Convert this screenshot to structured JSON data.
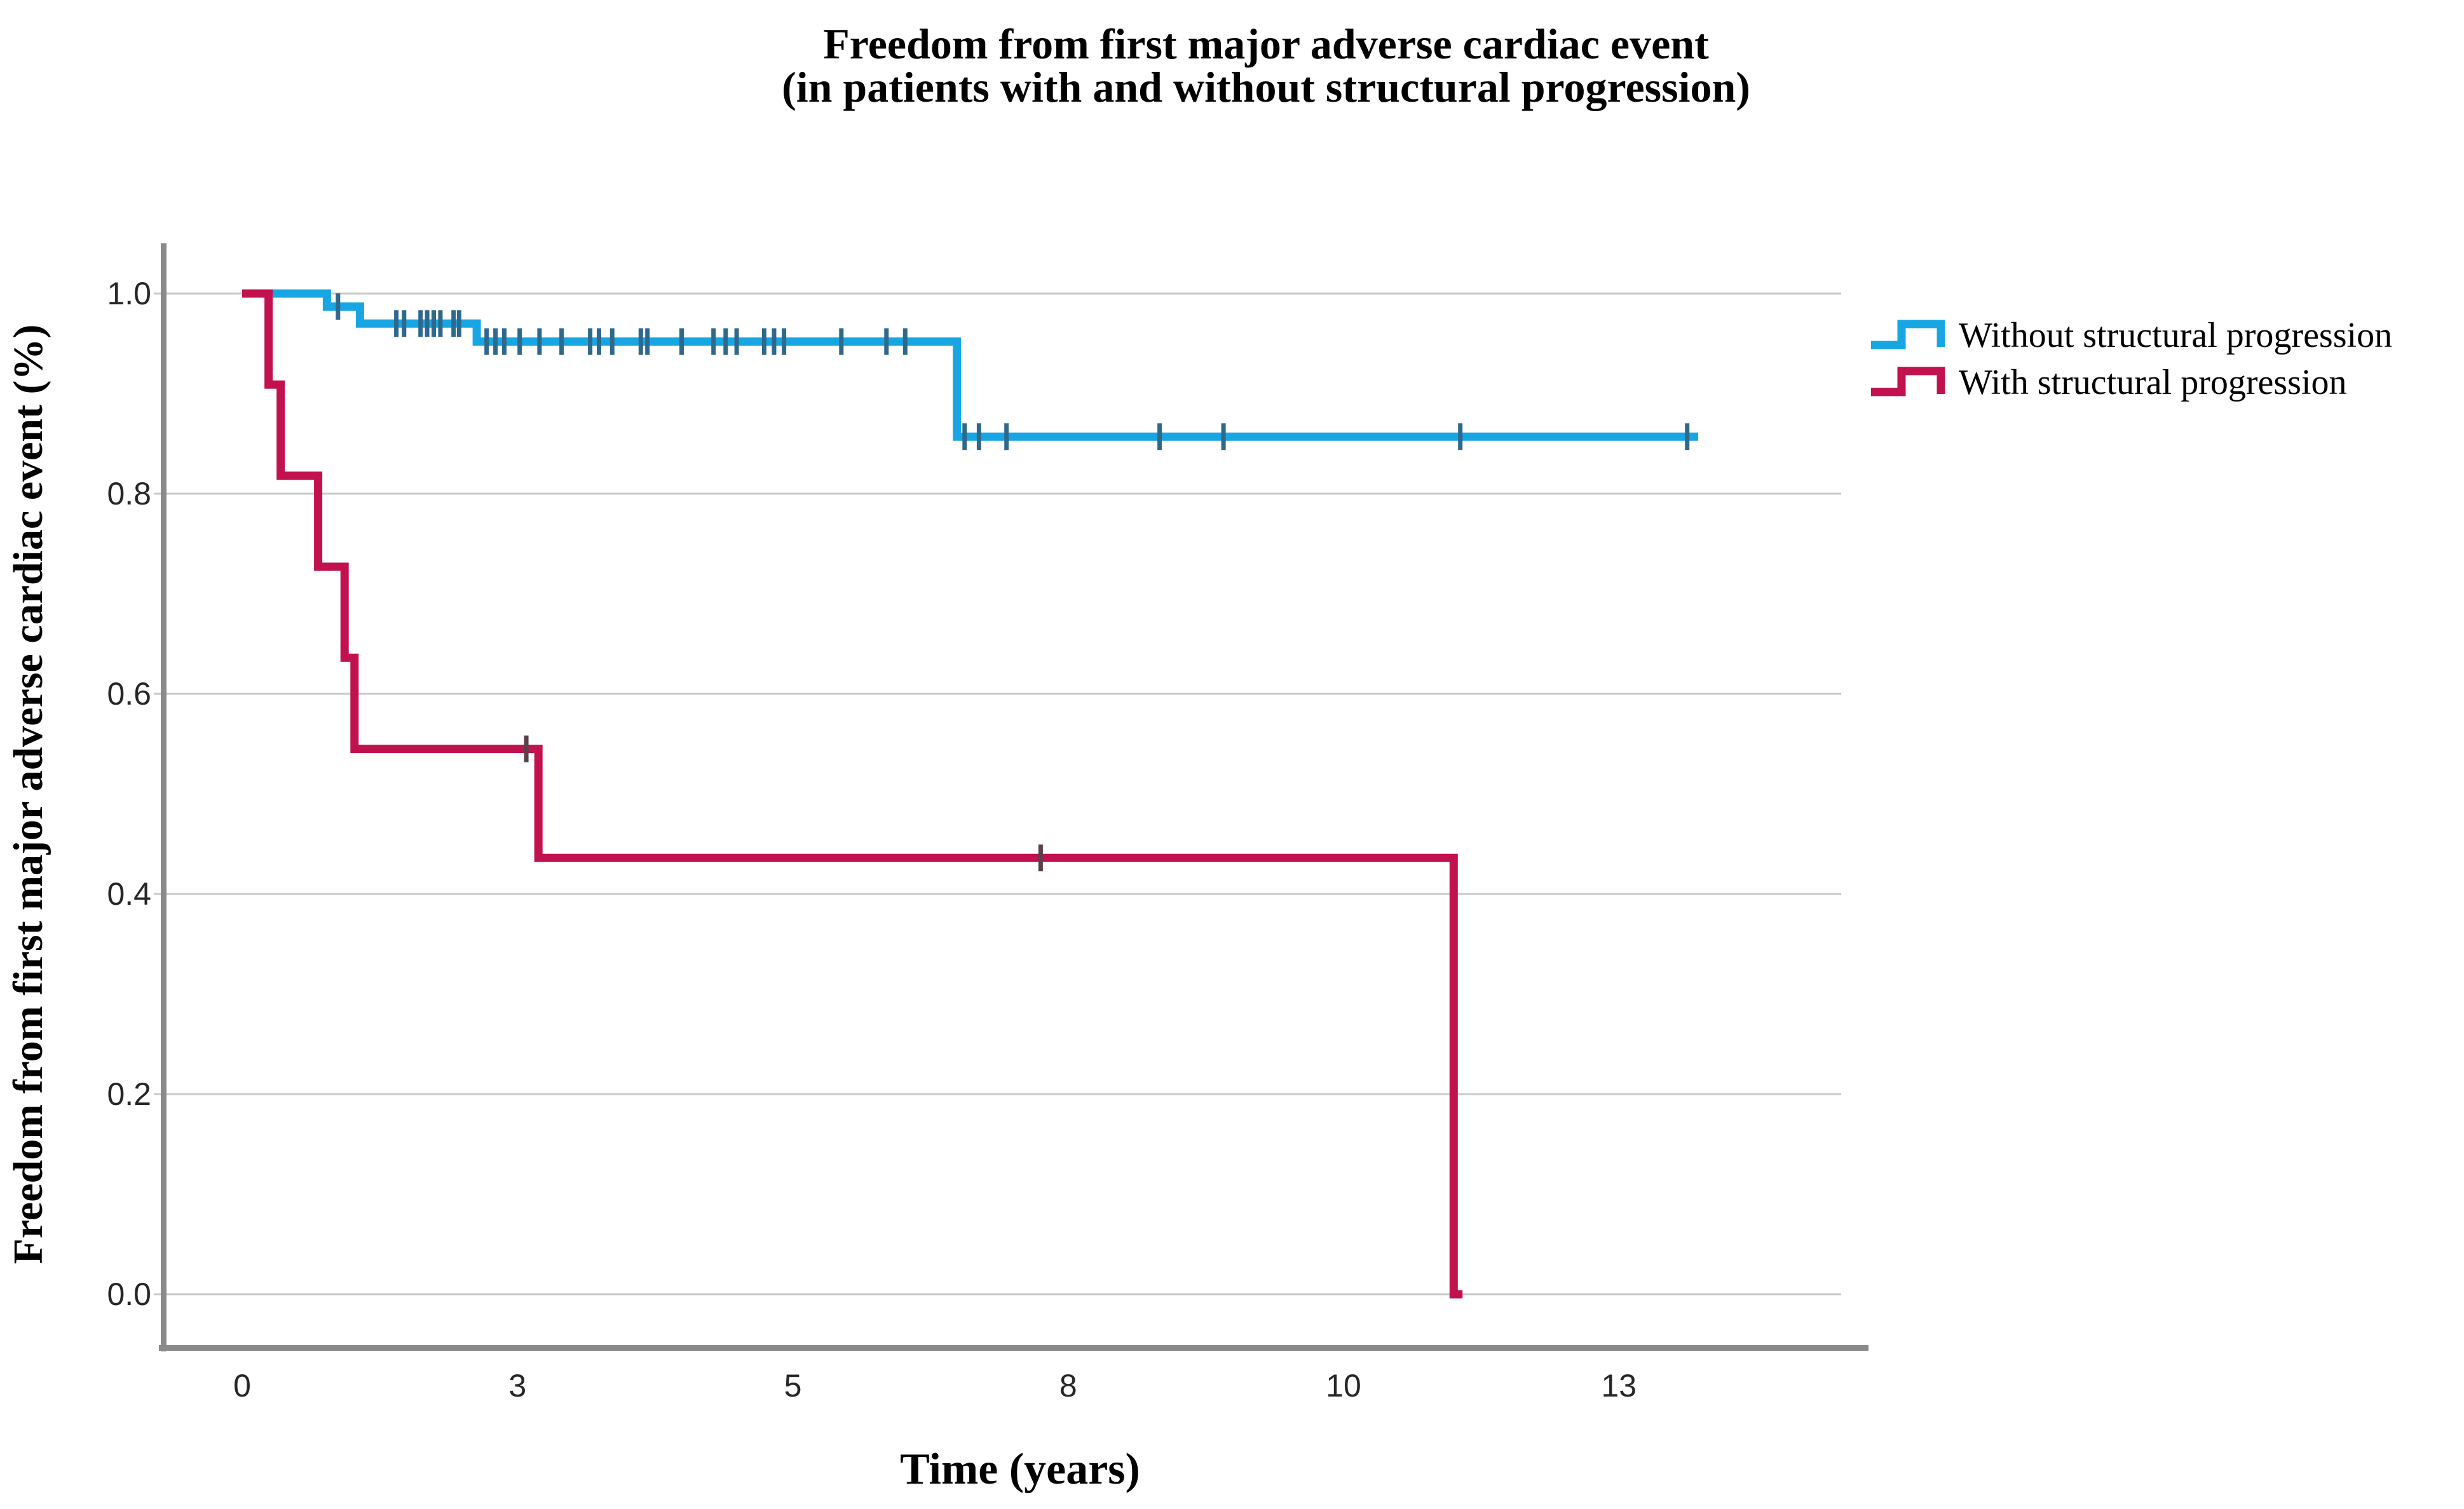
{
  "title": {
    "line1": "Freedom from first major adverse cardiac event",
    "line2": "(in patients with and without structural progression)"
  },
  "axes": {
    "x": {
      "title": "Time (years)"
    },
    "y": {
      "title": "Freedom from first major adverse cardiac event (%)"
    }
  },
  "legend": {
    "items": [
      {
        "label": "Without structural progression",
        "color": "#18A6E3"
      },
      {
        "label": "With structural progression",
        "color": "#C1114F"
      }
    ]
  },
  "colors": {
    "grid": "#C9C9C9",
    "axis_line": "#8A8A8A",
    "tick_text": "#262626",
    "title_text": "#000000",
    "series_without": "#18A6E3",
    "series_with": "#C1114F",
    "censor_without": "#2E688C",
    "censor_with": "#5C3F4C"
  },
  "chart_data": {
    "type": "line",
    "subtype": "kaplan-meier-step",
    "title": "Freedom from first major adverse cardiac event (in patients with and without structural progression)",
    "xlabel": "Time (years)",
    "ylabel": "Freedom from first major adverse cardiac event (%)",
    "xlim": [
      -0.72,
      15.0
    ],
    "ylim": [
      -0.05,
      1.05
    ],
    "grid": "horizontal",
    "legend_position": "right",
    "x_ticks": [
      {
        "v": 0,
        "label": "0"
      },
      {
        "v": 2.5,
        "label": "3"
      },
      {
        "v": 5,
        "label": "5"
      },
      {
        "v": 7.5,
        "label": "8"
      },
      {
        "v": 10,
        "label": "10"
      },
      {
        "v": 12.5,
        "label": "13"
      }
    ],
    "y_ticks": [
      {
        "v": 1.0,
        "label": "1.0"
      },
      {
        "v": 0.8,
        "label": "0.8"
      },
      {
        "v": 0.6,
        "label": "0.6"
      },
      {
        "v": 0.4,
        "label": "0.4"
      },
      {
        "v": 0.2,
        "label": "0.2"
      },
      {
        "v": 0.0,
        "label": "0.0"
      }
    ],
    "series": [
      {
        "name": "Without structural progression",
        "color": "#18A6E3",
        "censor_color": "#2E688C",
        "steps": [
          [
            0,
            1.0
          ],
          [
            0.77,
            1.0
          ],
          [
            0.77,
            0.987
          ],
          [
            1.07,
            0.987
          ],
          [
            1.07,
            0.97
          ],
          [
            2.13,
            0.97
          ],
          [
            2.13,
            0.952
          ],
          [
            6.49,
            0.952
          ],
          [
            6.49,
            0.857
          ],
          [
            13.22,
            0.857
          ]
        ],
        "censors": [
          [
            0.87,
            0.987
          ],
          [
            1.4,
            0.97
          ],
          [
            1.47,
            0.97
          ],
          [
            1.62,
            0.97
          ],
          [
            1.68,
            0.97
          ],
          [
            1.74,
            0.97
          ],
          [
            1.8,
            0.97
          ],
          [
            1.92,
            0.97
          ],
          [
            1.97,
            0.97
          ],
          [
            2.22,
            0.952
          ],
          [
            2.3,
            0.952
          ],
          [
            2.38,
            0.952
          ],
          [
            2.52,
            0.952
          ],
          [
            2.7,
            0.952
          ],
          [
            2.9,
            0.952
          ],
          [
            3.16,
            0.952
          ],
          [
            3.24,
            0.952
          ],
          [
            3.36,
            0.952
          ],
          [
            3.62,
            0.952
          ],
          [
            3.68,
            0.952
          ],
          [
            3.99,
            0.952
          ],
          [
            4.28,
            0.952
          ],
          [
            4.39,
            0.952
          ],
          [
            4.49,
            0.952
          ],
          [
            4.74,
            0.952
          ],
          [
            4.83,
            0.952
          ],
          [
            4.92,
            0.952
          ],
          [
            5.44,
            0.952
          ],
          [
            5.85,
            0.952
          ],
          [
            6.02,
            0.952
          ],
          [
            6.56,
            0.857
          ],
          [
            6.69,
            0.857
          ],
          [
            6.94,
            0.857
          ],
          [
            8.33,
            0.857
          ],
          [
            8.91,
            0.857
          ],
          [
            11.06,
            0.857
          ],
          [
            13.12,
            0.857
          ]
        ]
      },
      {
        "name": "With structural progression",
        "color": "#C1114F",
        "censor_color": "#5C3F4C",
        "steps": [
          [
            0,
            1.0
          ],
          [
            0.24,
            1.0
          ],
          [
            0.24,
            0.909
          ],
          [
            0.35,
            0.909
          ],
          [
            0.35,
            0.818
          ],
          [
            0.69,
            0.818
          ],
          [
            0.69,
            0.727
          ],
          [
            0.93,
            0.727
          ],
          [
            0.93,
            0.636
          ],
          [
            1.02,
            0.636
          ],
          [
            1.02,
            0.545
          ],
          [
            2.69,
            0.545
          ],
          [
            2.69,
            0.436
          ],
          [
            11.0,
            0.436
          ],
          [
            11.0,
            0.0
          ],
          [
            11.08,
            0.0
          ]
        ],
        "censors": [
          [
            2.58,
            0.545
          ],
          [
            7.25,
            0.436
          ]
        ]
      }
    ]
  }
}
